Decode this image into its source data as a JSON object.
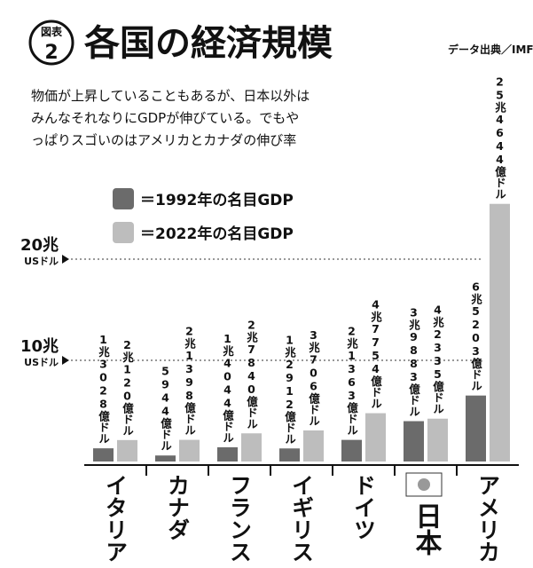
{
  "header": {
    "badge_top": "図表",
    "badge_num": "2",
    "source": "データ出典／IMF"
  },
  "chart_data": {
    "type": "bar",
    "title": "各国の経済規模",
    "subtitle": [
      "物価が上昇していることもあるが、日本以外は",
      "みんなそれなりにGDPが伸びている。でもや",
      "っぱりスゴいのはアメリカとカナダの伸び率"
    ],
    "categories": [
      "イタリア",
      "カナダ",
      "フランス",
      "イギリス",
      "ドイツ",
      "日本",
      "アメリカ"
    ],
    "series": [
      {
        "name": "＝1992年の名目GDP",
        "color": "#6b6b6b",
        "values": [
          1.3028,
          0.5944,
          1.4044,
          1.2912,
          2.1363,
          3.9883,
          6.5203
        ],
        "value_labels": [
          "1兆3028億ドル",
          "5944億ドル",
          "1兆4044億ドル",
          "1兆2912億ドル",
          "2兆1363億ドル",
          "3兆9883億ドル",
          "6兆5203億ドル"
        ]
      },
      {
        "name": "＝2022年の名目GDP",
        "color": "#bdbdbd",
        "values": [
          2.12,
          2.1398,
          2.784,
          3.0706,
          4.7754,
          4.2335,
          25.4644
        ],
        "value_labels": [
          "2兆120億ドル",
          "2兆1398億ドル",
          "2兆7840億ドル",
          "3兆706億ドル",
          "4兆7754億ドル",
          "4兆2335億ドル",
          "25兆4644億ドル"
        ]
      }
    ],
    "ylim": [
      0,
      45
    ],
    "yticks": [
      {
        "value": 10,
        "label": "10兆"
      },
      {
        "value": 20,
        "label": "20兆"
      }
    ],
    "y_unit": "USドル",
    "grid": true
  }
}
